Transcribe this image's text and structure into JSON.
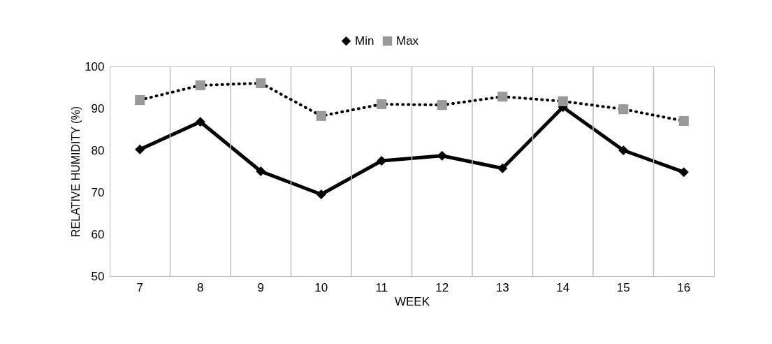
{
  "chart_data": {
    "type": "line",
    "xlabel": "WEEK",
    "ylabel": "RELATIVE HUMIDITY (%)",
    "categories": [
      "7",
      "8",
      "9",
      "10",
      "11",
      "12",
      "13",
      "14",
      "15",
      "16"
    ],
    "series": [
      {
        "name": "Min",
        "color": "#000000",
        "marker": "diamond",
        "line_style": "solid",
        "values": [
          80.2,
          86.8,
          75,
          69.5,
          77.5,
          78.7,
          75.7,
          90.3,
          80,
          74.8
        ]
      },
      {
        "name": "Max",
        "color": "#999999",
        "marker": "square",
        "line_style": "dotted",
        "values": [
          92,
          95.5,
          96,
          88.2,
          91,
          90.8,
          92.8,
          91.7,
          89.8,
          87
        ]
      }
    ],
    "ylim": [
      50,
      100
    ],
    "yticks": [
      50,
      60,
      70,
      80,
      90,
      100
    ],
    "grid": "x",
    "legend": "top"
  }
}
